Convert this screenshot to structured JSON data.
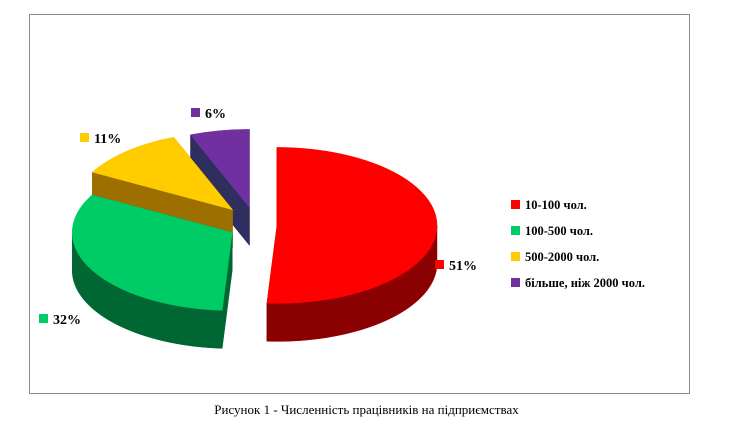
{
  "chart_data": {
    "type": "pie",
    "title": "",
    "categories": [
      "10-100 чол.",
      "100-500 чол.",
      "500-2000 чол.",
      "більше, ніж 2000 чол."
    ],
    "values": [
      51,
      32,
      11,
      6
    ],
    "data_labels": [
      "51%",
      "32%",
      "11%",
      "6%"
    ],
    "colors": [
      "#ff0000",
      "#00cc66",
      "#ffcc00",
      "#7030a0"
    ],
    "side_colors": [
      "#8b0000",
      "#006633",
      "#9c6f00",
      "#2f2f5f"
    ],
    "style": "3d-exploded",
    "legend_position": "right"
  },
  "caption": "Рисунок 1 -  Численність працівників на підприємствах"
}
